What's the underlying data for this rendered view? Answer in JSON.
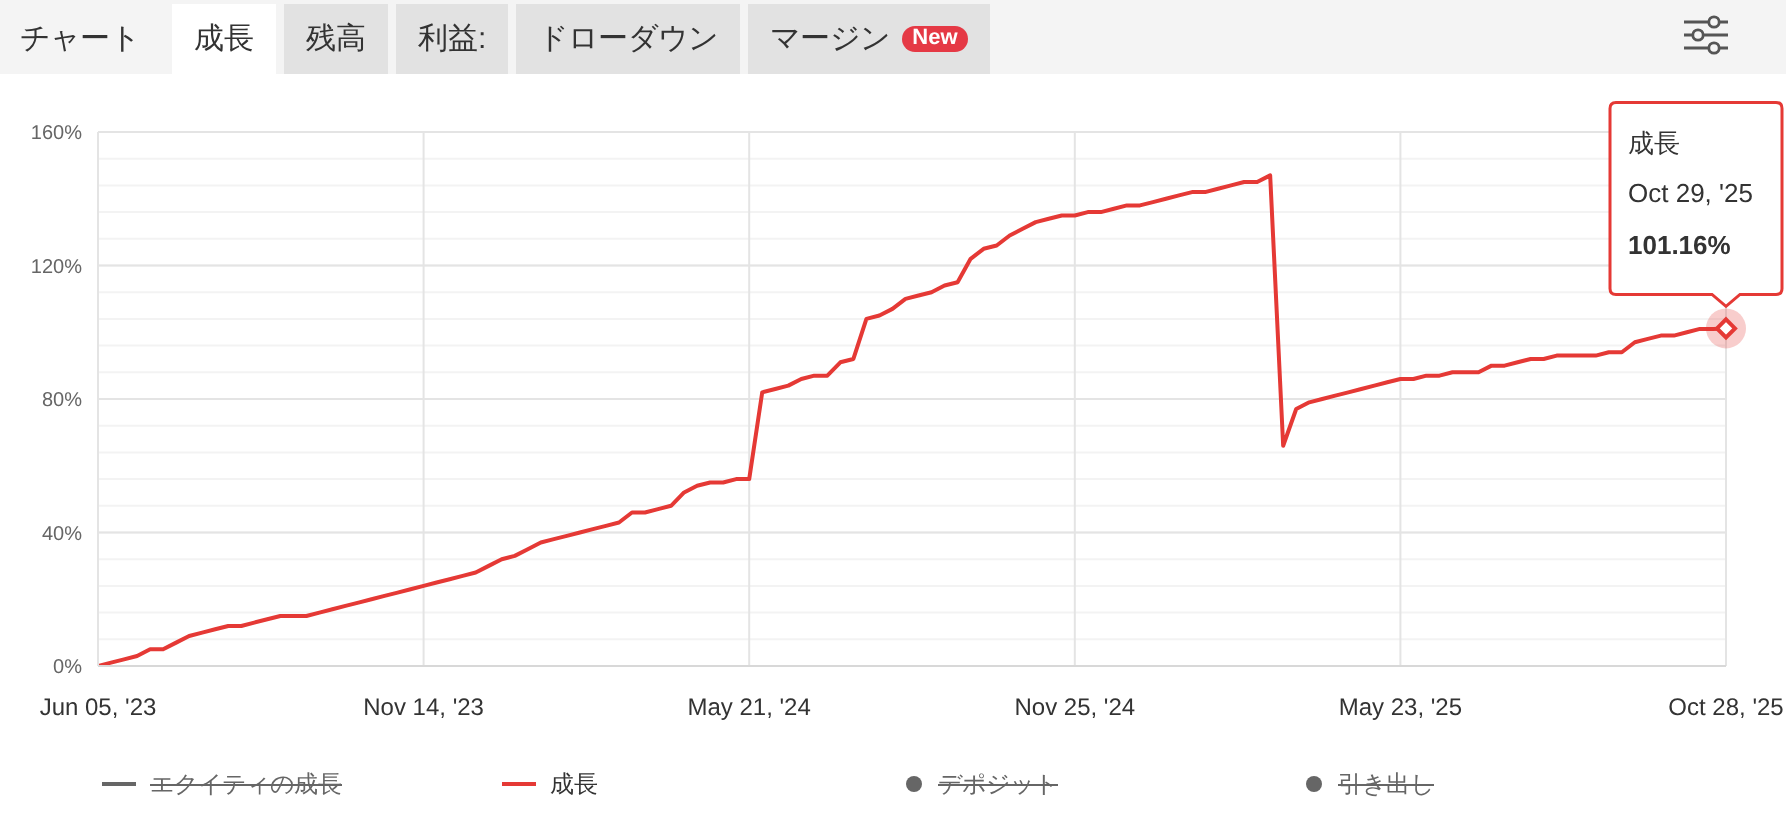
{
  "chart_data": {
    "type": "line",
    "title": "チャート",
    "categories": [
      "Jun 05, '23",
      null,
      null,
      null,
      null,
      null,
      null,
      null,
      null,
      null,
      null,
      null,
      null,
      null,
      null,
      null,
      null,
      null,
      null,
      null,
      null,
      null,
      null,
      null,
      null,
      "Nov 14, '23",
      null,
      null,
      null,
      null,
      null,
      null,
      null,
      null,
      null,
      null,
      null,
      null,
      null,
      null,
      null,
      null,
      null,
      null,
      null,
      null,
      null,
      null,
      null,
      null,
      "May 21, '24",
      null,
      null,
      null,
      null,
      null,
      null,
      null,
      null,
      null,
      null,
      null,
      null,
      null,
      null,
      null,
      null,
      null,
      null,
      null,
      null,
      null,
      null,
      null,
      null,
      "Nov 25, '24",
      null,
      null,
      null,
      null,
      null,
      null,
      null,
      null,
      null,
      null,
      null,
      null,
      null,
      null,
      null,
      null,
      null,
      null,
      null,
      null,
      null,
      null,
      null,
      null,
      "May 23, '25",
      null,
      null,
      null,
      null,
      null,
      null,
      null,
      null,
      null,
      null,
      null,
      null,
      null,
      null,
      null,
      null,
      null,
      null,
      null,
      null,
      null,
      null,
      null,
      null,
      "Oct 28, '25"
    ],
    "series": [
      {
        "name": "エクイティの成長",
        "color": "#666666",
        "values": [
          null,
          null,
          null,
          null,
          null,
          null,
          null,
          null,
          null,
          null,
          null,
          null,
          null,
          null,
          null,
          null,
          null,
          null,
          null,
          null,
          null,
          null,
          null,
          null,
          null,
          null,
          null,
          null,
          null,
          null,
          null,
          null,
          null,
          null,
          null,
          null,
          null,
          null,
          null,
          null,
          null,
          null,
          null,
          null,
          null,
          null,
          null,
          null,
          null,
          null,
          null,
          null,
          null,
          null,
          null,
          null,
          null,
          null,
          null,
          null,
          null,
          null,
          null,
          null,
          null,
          null,
          null,
          null,
          null,
          null,
          null,
          null,
          null,
          null,
          null,
          null,
          null,
          null,
          null,
          null,
          null,
          null,
          null,
          null,
          null,
          null,
          null,
          null,
          null,
          null,
          null,
          null,
          null,
          null,
          null,
          null,
          null,
          null,
          null,
          null,
          null,
          null,
          null,
          null,
          null,
          null,
          null,
          null,
          null,
          null,
          null,
          null,
          null,
          null,
          null,
          null,
          null,
          null,
          null,
          null,
          null,
          null,
          null,
          null,
          null,
          null
        ]
      },
      {
        "name": "成長",
        "color": "#e53935",
        "values": [
          0,
          1,
          2,
          3,
          5,
          5,
          7,
          9,
          10,
          11,
          12,
          12,
          13,
          14,
          15,
          15,
          15,
          16,
          17,
          18,
          19,
          20,
          21,
          22,
          23,
          24,
          25,
          26,
          27,
          28,
          30,
          32,
          33,
          35,
          37,
          38,
          39,
          40,
          41,
          42,
          43,
          46,
          46,
          47,
          48,
          52,
          54,
          55,
          55,
          56,
          56,
          82,
          83,
          84,
          86,
          87,
          87,
          91,
          92,
          104,
          105,
          107,
          110,
          111,
          112,
          114,
          115,
          122,
          125,
          126,
          129,
          131,
          133,
          134,
          135,
          135,
          136,
          136,
          137,
          138,
          138,
          139,
          140,
          141,
          142,
          142,
          143,
          144,
          145,
          145,
          147,
          66,
          77,
          79,
          80,
          81,
          82,
          83,
          84,
          85,
          86,
          86,
          87,
          87,
          88,
          88,
          88,
          90,
          90,
          91,
          92,
          92,
          93,
          93,
          93,
          93,
          94,
          94,
          97,
          98,
          99,
          99,
          100,
          101,
          101,
          101.16
        ]
      },
      {
        "name": "デポジット",
        "type": "scatter",
        "color": "#666666",
        "values": [
          null,
          null,
          null,
          null,
          null,
          null,
          null,
          null,
          null,
          null,
          null,
          null,
          null,
          null,
          null,
          null,
          null,
          null,
          null,
          null,
          null,
          null,
          null,
          null,
          null,
          null,
          null,
          null,
          null,
          null,
          null,
          null,
          null,
          null,
          null,
          null,
          null,
          null,
          null,
          null,
          null,
          null,
          null,
          null,
          null,
          null,
          null,
          null,
          null,
          null,
          null,
          null,
          null,
          null,
          null,
          null,
          null,
          null,
          null,
          null,
          null,
          null,
          null,
          null,
          null,
          null,
          null,
          null,
          null,
          null,
          null,
          null,
          null,
          null,
          null,
          null,
          null,
          null,
          null,
          null,
          null,
          null,
          null,
          null,
          null,
          null,
          null,
          null,
          null,
          null,
          null,
          null,
          null,
          null,
          null,
          null,
          null,
          null,
          null,
          null,
          null,
          null,
          null,
          null,
          null,
          null,
          null,
          null,
          null,
          null,
          null,
          null,
          null,
          null,
          null,
          null,
          null,
          null,
          null,
          null,
          null,
          null,
          null,
          null,
          null,
          null
        ]
      },
      {
        "name": "引き出し",
        "type": "scatter",
        "color": "#666666",
        "values": [
          null,
          null,
          null,
          null,
          null,
          null,
          null,
          null,
          null,
          null,
          null,
          null,
          null,
          null,
          null,
          null,
          null,
          null,
          null,
          null,
          null,
          null,
          null,
          null,
          null,
          null,
          null,
          null,
          null,
          null,
          null,
          null,
          null,
          null,
          null,
          null,
          null,
          null,
          null,
          null,
          null,
          null,
          null,
          null,
          null,
          null,
          null,
          null,
          null,
          null,
          null,
          null,
          null,
          null,
          null,
          null,
          null,
          null,
          null,
          null,
          null,
          null,
          null,
          null,
          null,
          null,
          null,
          null,
          null,
          null,
          null,
          null,
          null,
          null,
          null,
          null,
          null,
          null,
          null,
          null,
          null,
          null,
          null,
          null,
          null,
          null,
          null,
          null,
          null,
          null,
          null,
          null,
          null,
          null,
          null,
          null,
          null,
          null,
          null,
          null,
          null,
          null,
          null,
          null,
          null,
          null,
          null,
          null,
          null,
          null,
          null,
          null,
          null,
          null,
          null,
          null,
          null,
          null,
          null,
          null,
          null,
          null,
          null,
          null,
          null,
          null
        ]
      }
    ],
    "ylim": [
      0,
      160
    ],
    "yticks": [
      {
        "value": 0,
        "label": "0%"
      },
      {
        "value": 8,
        "label": null
      },
      {
        "value": 16,
        "label": null
      },
      {
        "value": 24,
        "label": null
      },
      {
        "value": 32,
        "label": null
      },
      {
        "value": 40,
        "label": "40%"
      },
      {
        "value": 48,
        "label": null
      },
      {
        "value": 56,
        "label": null
      },
      {
        "value": 64,
        "label": null
      },
      {
        "value": 72,
        "label": null
      },
      {
        "value": 80,
        "label": "80%"
      },
      {
        "value": 88,
        "label": null
      },
      {
        "value": 96,
        "label": null
      },
      {
        "value": 104,
        "label": null
      },
      {
        "value": 112,
        "label": null
      },
      {
        "value": 120,
        "label": "120%"
      },
      {
        "value": 128,
        "label": null
      },
      {
        "value": 136,
        "label": null
      },
      {
        "value": 144,
        "label": null
      },
      {
        "value": 152,
        "label": null
      },
      {
        "value": 160,
        "label": "160%"
      }
    ],
    "grid": true,
    "legend": "bottom",
    "line_style": "solid",
    "annotations": [
      "成長",
      "残高",
      "利益:",
      "ドローダウン",
      "マージン",
      "New",
      "Oct 29, '25",
      {
        "text": "101.16%",
        "y": 101.16
      }
    ]
  }
}
